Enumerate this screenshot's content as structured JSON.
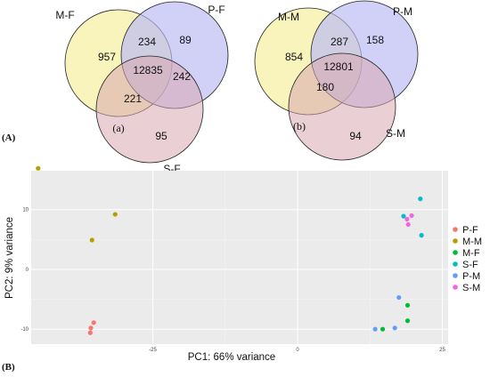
{
  "panel_labels": {
    "a": "(A)",
    "b": "(B)"
  },
  "colors": {
    "venn_circle_1": "#f7f2b0",
    "venn_circle_2": "#c3c3f7",
    "venn_circle_3": "#e3c2c6",
    "plot_bg": "#ebebeb",
    "grid": "#ffffff"
  },
  "venn_left": {
    "sub_label": "(a)",
    "set_labels": [
      "M-F",
      "P-F",
      "S-F"
    ],
    "values": {
      "only_1": "957",
      "only_2": "89",
      "only_3": "95",
      "pair_12": "234",
      "pair_13": "221",
      "pair_23": "242",
      "all": "12835"
    }
  },
  "venn_right": {
    "sub_label": "(b)",
    "set_labels": [
      "M-M",
      "P-M",
      "S-M"
    ],
    "values": {
      "only_1": "854",
      "only_2": "158",
      "only_3": "94",
      "pair_12": "287",
      "pair_13": "180",
      "pair_23": "",
      "all": "12801"
    }
  },
  "chart_data": {
    "type": "scatter",
    "xlabel": "PC1: 66% variance",
    "ylabel": "PC2: 9% variance",
    "xlim": [
      -46,
      26
    ],
    "ylim": [
      -12.5,
      16.5
    ],
    "x_ticks": [
      -25,
      0,
      25
    ],
    "y_ticks": [
      -10,
      0,
      10
    ],
    "x_tick_labels": [
      "-25",
      "0",
      "25"
    ],
    "y_tick_labels": [
      "-10",
      "0",
      "10"
    ],
    "grid": true,
    "legend_position": "right",
    "series": [
      {
        "name": "P-F",
        "color": "#f8766d",
        "points": [
          [
            -35.2,
            -8.9
          ],
          [
            -35.7,
            -9.8
          ],
          [
            -35.8,
            -10.6
          ]
        ]
      },
      {
        "name": "M-M",
        "color": "#b79f00",
        "points": [
          [
            -44.8,
            16.9
          ],
          [
            -31.5,
            9.2
          ],
          [
            -35.5,
            4.9
          ]
        ]
      },
      {
        "name": "M-F",
        "color": "#00ba38",
        "points": [
          [
            19.0,
            -6.0
          ],
          [
            19.0,
            -8.6
          ],
          [
            14.7,
            -10.0
          ]
        ]
      },
      {
        "name": "S-F",
        "color": "#00bfc4",
        "points": [
          [
            21.2,
            11.8
          ],
          [
            21.4,
            5.7
          ],
          [
            18.3,
            8.9
          ]
        ]
      },
      {
        "name": "P-M",
        "color": "#619cff",
        "points": [
          [
            17.5,
            -4.7
          ],
          [
            16.8,
            -9.8
          ],
          [
            13.4,
            -10.0
          ]
        ]
      },
      {
        "name": "S-M",
        "color": "#f564e3",
        "points": [
          [
            19.7,
            9.0
          ],
          [
            18.9,
            8.4
          ],
          [
            19.1,
            7.5
          ]
        ]
      }
    ]
  }
}
